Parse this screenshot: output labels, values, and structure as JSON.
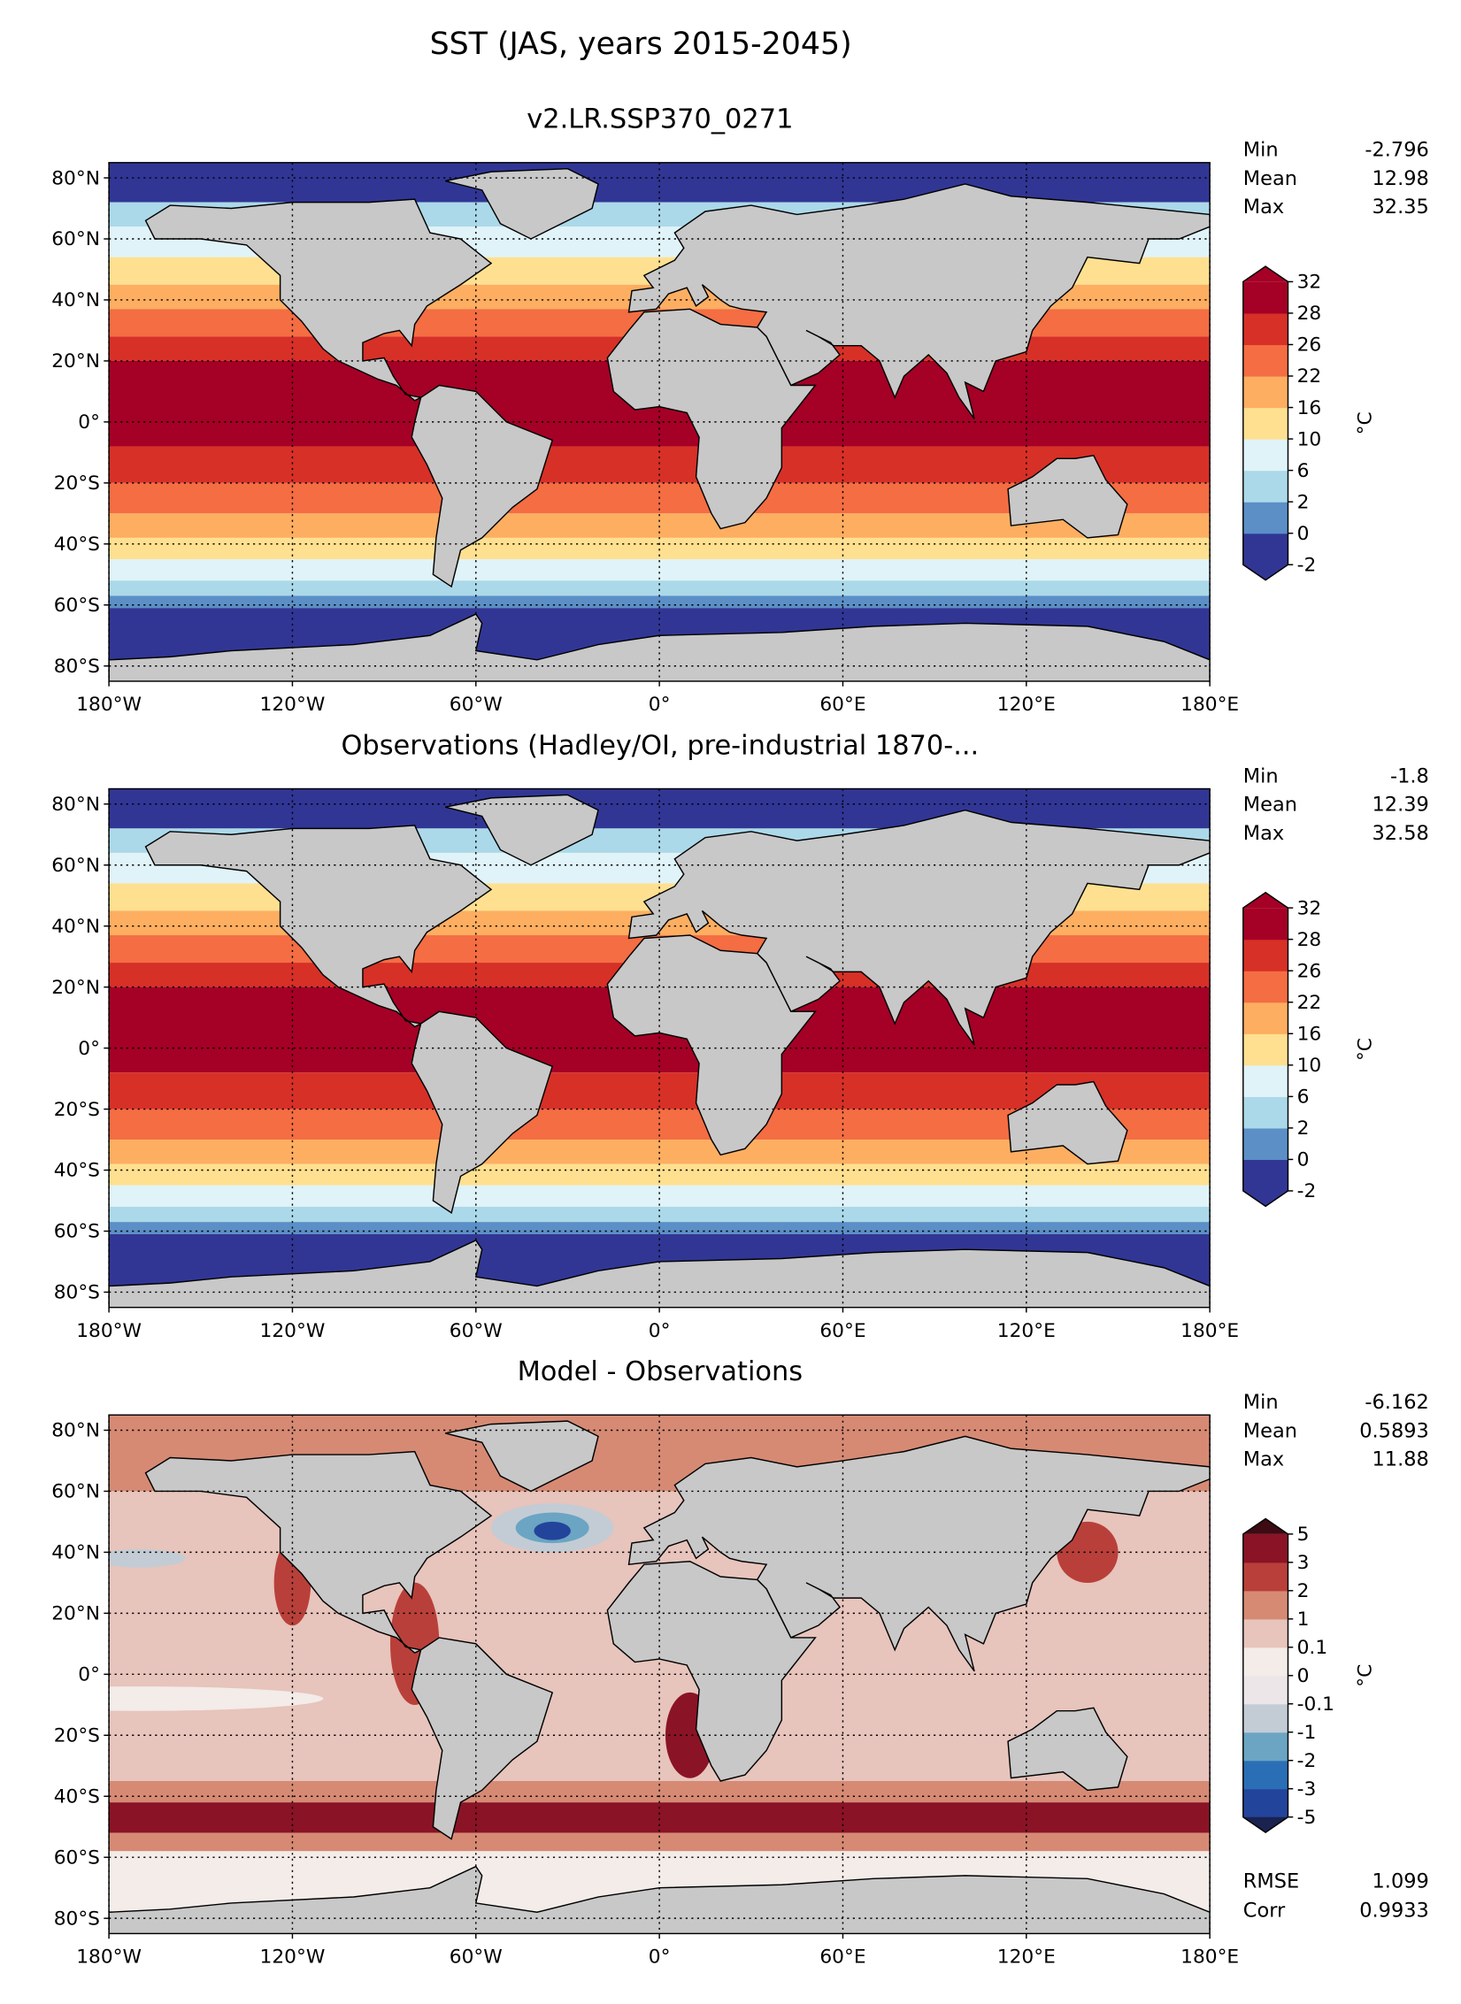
{
  "title": "SST (JAS, years 2015-2045)",
  "chart_data": [
    {
      "type": "map",
      "title": "v2.LR.SSP370_0271",
      "stats": [
        {
          "label": "Min",
          "value": -2.796
        },
        {
          "label": "Mean",
          "value": 12.98
        },
        {
          "label": "Max",
          "value": 32.35
        }
      ],
      "xlim": [
        -180,
        180
      ],
      "ylim": [
        -85,
        85
      ],
      "xticks": [
        {
          "value": -180,
          "label": "180°W"
        },
        {
          "value": -120,
          "label": "120°W"
        },
        {
          "value": -60,
          "label": "60°W"
        },
        {
          "value": 0,
          "label": "0°"
        },
        {
          "value": 60,
          "label": "60°E"
        },
        {
          "value": 120,
          "label": "120°E"
        },
        {
          "value": 180,
          "label": "180°E"
        }
      ],
      "yticks": [
        {
          "value": 80,
          "label": "80°N"
        },
        {
          "value": 60,
          "label": "60°N"
        },
        {
          "value": 40,
          "label": "40°N"
        },
        {
          "value": 20,
          "label": "20°N"
        },
        {
          "value": 0,
          "label": "0°"
        },
        {
          "value": -20,
          "label": "20°S"
        },
        {
          "value": -40,
          "label": "40°S"
        },
        {
          "value": -60,
          "label": "60°S"
        },
        {
          "value": -80,
          "label": "80°S"
        }
      ],
      "grid": true,
      "colorbar": {
        "label": "°C",
        "levels": [
          -2,
          0,
          2,
          6,
          10,
          16,
          22,
          26,
          28,
          32
        ],
        "colors": [
          "#313695",
          "#5b8fc6",
          "#abd9e9",
          "#e0f3f8",
          "#fee090",
          "#fdae61",
          "#f46d43",
          "#d73027",
          "#a50026"
        ],
        "extend_colors": [
          "#313695",
          "#a50026"
        ]
      }
    },
    {
      "type": "map",
      "title": "Observations (Hadley/OI, pre-industrial 1870-...",
      "stats": [
        {
          "label": "Min",
          "value": -1.8
        },
        {
          "label": "Mean",
          "value": 12.39
        },
        {
          "label": "Max",
          "value": 32.58
        }
      ],
      "xlim": [
        -180,
        180
      ],
      "ylim": [
        -85,
        85
      ],
      "xticks": [
        {
          "value": -180,
          "label": "180°W"
        },
        {
          "value": -120,
          "label": "120°W"
        },
        {
          "value": -60,
          "label": "60°W"
        },
        {
          "value": 0,
          "label": "0°"
        },
        {
          "value": 60,
          "label": "60°E"
        },
        {
          "value": 120,
          "label": "120°E"
        },
        {
          "value": 180,
          "label": "180°E"
        }
      ],
      "yticks": [
        {
          "value": 80,
          "label": "80°N"
        },
        {
          "value": 60,
          "label": "60°N"
        },
        {
          "value": 40,
          "label": "40°N"
        },
        {
          "value": 20,
          "label": "20°N"
        },
        {
          "value": 0,
          "label": "0°"
        },
        {
          "value": -20,
          "label": "20°S"
        },
        {
          "value": -40,
          "label": "40°S"
        },
        {
          "value": -60,
          "label": "60°S"
        },
        {
          "value": -80,
          "label": "80°S"
        }
      ],
      "grid": true,
      "colorbar": {
        "label": "°C",
        "levels": [
          -2,
          0,
          2,
          6,
          10,
          16,
          22,
          26,
          28,
          32
        ],
        "colors": [
          "#313695",
          "#5b8fc6",
          "#abd9e9",
          "#e0f3f8",
          "#fee090",
          "#fdae61",
          "#f46d43",
          "#d73027",
          "#a50026"
        ],
        "extend_colors": [
          "#313695",
          "#a50026"
        ]
      }
    },
    {
      "type": "map",
      "title": "Model - Observations",
      "stats": [
        {
          "label": "Min",
          "value": -6.162
        },
        {
          "label": "Mean",
          "value": 0.5893
        },
        {
          "label": "Max",
          "value": 11.88
        }
      ],
      "metrics": [
        {
          "label": "RMSE",
          "value": 1.099
        },
        {
          "label": "Corr",
          "value": 0.9933
        }
      ],
      "xlim": [
        -180,
        180
      ],
      "ylim": [
        -85,
        85
      ],
      "xticks": [
        {
          "value": -180,
          "label": "180°W"
        },
        {
          "value": -120,
          "label": "120°W"
        },
        {
          "value": -60,
          "label": "60°W"
        },
        {
          "value": 0,
          "label": "0°"
        },
        {
          "value": 60,
          "label": "60°E"
        },
        {
          "value": 120,
          "label": "120°E"
        },
        {
          "value": 180,
          "label": "180°E"
        }
      ],
      "yticks": [
        {
          "value": 80,
          "label": "80°N"
        },
        {
          "value": 60,
          "label": "60°N"
        },
        {
          "value": 40,
          "label": "40°N"
        },
        {
          "value": 20,
          "label": "20°N"
        },
        {
          "value": 0,
          "label": "0°"
        },
        {
          "value": -20,
          "label": "20°S"
        },
        {
          "value": -40,
          "label": "40°S"
        },
        {
          "value": -60,
          "label": "60°S"
        },
        {
          "value": -80,
          "label": "80°S"
        }
      ],
      "grid": true,
      "colorbar": {
        "label": "°C",
        "levels": [
          -5,
          -3,
          -2,
          -1,
          -0.1,
          0,
          0.1,
          1,
          2,
          3,
          5
        ],
        "colors": [
          "#23449b",
          "#2a6fb6",
          "#6ba5c3",
          "#c3ccd5",
          "#ece6e8",
          "#f3ece9",
          "#e7c4bc",
          "#d68a74",
          "#b9403a",
          "#8b1326"
        ],
        "extend_colors": [
          "#1a2250",
          "#3e0a14"
        ]
      }
    }
  ]
}
